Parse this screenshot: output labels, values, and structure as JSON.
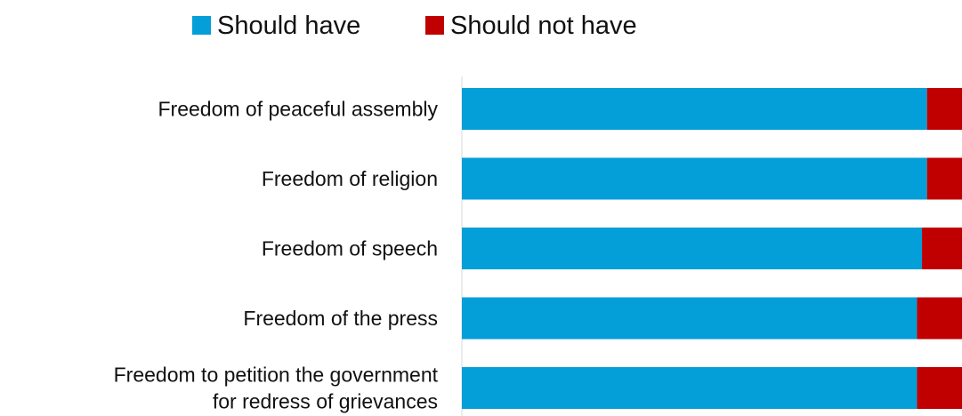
{
  "chart_data": {
    "type": "bar",
    "orientation": "horizontal",
    "stacked": true,
    "normalized_to_percent": true,
    "title": "",
    "xlabel": "",
    "ylabel": "",
    "xlim": [
      0,
      100
    ],
    "grid": false,
    "legend_position": "top",
    "categories": [
      [
        "Freedom of peaceful assembly"
      ],
      [
        "Freedom of religion"
      ],
      [
        "Freedom of speech"
      ],
      [
        "Freedom of the press"
      ],
      [
        "Freedom to petition the government",
        "for redress of grievances"
      ]
    ],
    "series": [
      {
        "name": "Should have",
        "color": "#049ED8",
        "values": [
          93,
          93,
          92,
          91,
          91
        ]
      },
      {
        "name": "Should not have",
        "color": "#C00000",
        "values": [
          7,
          7,
          8,
          9,
          9
        ]
      }
    ]
  }
}
